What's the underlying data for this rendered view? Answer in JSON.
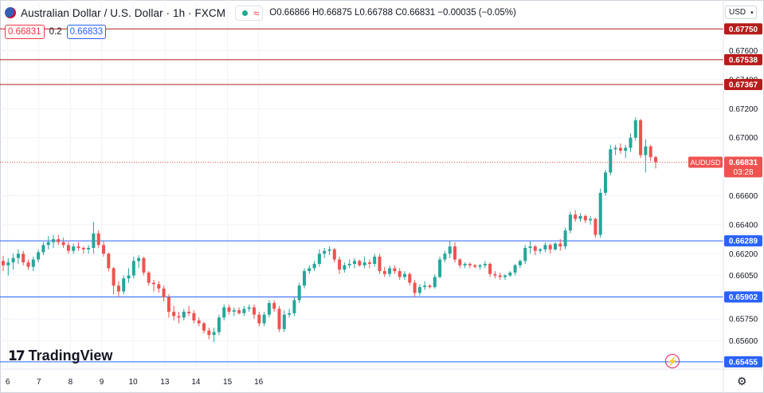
{
  "header": {
    "title": "Australian Dollar / U.S. Dollar · 1h · FXCM",
    "open": "O0.66866",
    "high": "H0.66875",
    "low": "L0.66788",
    "close": "C0.66831",
    "change": "−0.00035 (−0.05%)",
    "live_wave": "≈"
  },
  "quote": {
    "sell": "0.66831",
    "spread": "0.2",
    "buy": "0.66833"
  },
  "currency": "USD",
  "logo_text": "TradingView",
  "colors": {
    "up": "#26a69a",
    "down": "#ef5350",
    "resistance": "#b71c1c",
    "support": "#2962ff",
    "grid": "#f0f3fa"
  },
  "chart_data": {
    "type": "candlestick",
    "symbol": "AUDUSD",
    "timeframe": "1h",
    "ylim": [
      0.6541,
      0.6779
    ],
    "y_ticks": [
      "0.67600",
      "0.67400",
      "0.67200",
      "0.67000",
      "0.66600",
      "0.66400",
      "0.66200",
      "0.66050",
      "0.65750",
      "0.65600"
    ],
    "x_labels": [
      {
        "label": "6",
        "x": 0.9
      },
      {
        "label": "7",
        "x": 7.1
      },
      {
        "label": "8",
        "x": 13.4
      },
      {
        "label": "9",
        "x": 19.6
      },
      {
        "label": "10",
        "x": 25.9
      },
      {
        "label": "13",
        "x": 32.2
      },
      {
        "label": "14",
        "x": 38.4
      },
      {
        "label": "15",
        "x": 44.7
      },
      {
        "label": "16",
        "x": 50.9
      }
    ],
    "horizontal_levels": [
      {
        "value": 0.6775,
        "label": "0.67750",
        "kind": "resistance"
      },
      {
        "value": 0.67538,
        "label": "0.67538",
        "kind": "resistance"
      },
      {
        "value": 0.67367,
        "label": "0.67367",
        "kind": "resistance"
      },
      {
        "value": 0.66289,
        "label": "0.66289",
        "kind": "support"
      },
      {
        "value": 0.65902,
        "label": "0.65902",
        "kind": "support"
      },
      {
        "value": 0.65455,
        "label": "0.65455",
        "kind": "support"
      }
    ],
    "last_price": {
      "value": 0.66831,
      "label": "0.66831",
      "symbol_tag": "AUDUSD",
      "countdown": "03:28"
    },
    "candles": [
      [
        0.6615,
        0.66185,
        0.6608,
        0.6612
      ],
      [
        0.6612,
        0.6617,
        0.6605,
        0.6614
      ],
      [
        0.6614,
        0.662,
        0.6609,
        0.6617
      ],
      [
        0.6617,
        0.6623,
        0.6613,
        0.662
      ],
      [
        0.662,
        0.6622,
        0.6612,
        0.6614
      ],
      [
        0.6614,
        0.6616,
        0.6609,
        0.6611
      ],
      [
        0.6611,
        0.6618,
        0.6608,
        0.6616
      ],
      [
        0.6616,
        0.6623,
        0.6614,
        0.6621
      ],
      [
        0.6621,
        0.6628,
        0.6619,
        0.6626
      ],
      [
        0.6626,
        0.6632,
        0.6623,
        0.6628
      ],
      [
        0.6628,
        0.6633,
        0.6624,
        0.663
      ],
      [
        0.663,
        0.6633,
        0.6626,
        0.6628
      ],
      [
        0.6628,
        0.6631,
        0.6624,
        0.6626
      ],
      [
        0.6626,
        0.6628,
        0.662,
        0.6622
      ],
      [
        0.6622,
        0.6627,
        0.662,
        0.6625
      ],
      [
        0.6625,
        0.6628,
        0.6622,
        0.6624
      ],
      [
        0.6624,
        0.6625,
        0.662,
        0.6623
      ],
      [
        0.6623,
        0.6626,
        0.662,
        0.6624
      ],
      [
        0.6624,
        0.6642,
        0.662,
        0.6634
      ],
      [
        0.6634,
        0.6636,
        0.6624,
        0.6626
      ],
      [
        0.6626,
        0.6629,
        0.6618,
        0.662
      ],
      [
        0.662,
        0.6621,
        0.6608,
        0.661
      ],
      [
        0.661,
        0.6611,
        0.6592,
        0.6598
      ],
      [
        0.6598,
        0.6601,
        0.659,
        0.6594
      ],
      [
        0.6594,
        0.6605,
        0.6592,
        0.6603
      ],
      [
        0.6603,
        0.661,
        0.66,
        0.6605
      ],
      [
        0.6605,
        0.6618,
        0.6603,
        0.6615
      ],
      [
        0.6615,
        0.6619,
        0.661,
        0.6617
      ],
      [
        0.6617,
        0.6618,
        0.6605,
        0.6607
      ],
      [
        0.6607,
        0.6608,
        0.6598,
        0.66
      ],
      [
        0.66,
        0.6602,
        0.6594,
        0.6599
      ],
      [
        0.6599,
        0.6601,
        0.6593,
        0.6596
      ],
      [
        0.6596,
        0.6598,
        0.6587,
        0.659
      ],
      [
        0.659,
        0.6592,
        0.6576,
        0.658
      ],
      [
        0.658,
        0.6584,
        0.6574,
        0.6577
      ],
      [
        0.6577,
        0.658,
        0.6572,
        0.6576
      ],
      [
        0.6576,
        0.6582,
        0.6574,
        0.658
      ],
      [
        0.658,
        0.6584,
        0.6577,
        0.6579
      ],
      [
        0.6579,
        0.6581,
        0.6572,
        0.6574
      ],
      [
        0.6574,
        0.6576,
        0.657,
        0.6572
      ],
      [
        0.6572,
        0.6573,
        0.6565,
        0.6567
      ],
      [
        0.6567,
        0.6569,
        0.6561,
        0.6564
      ],
      [
        0.6564,
        0.6569,
        0.6559,
        0.6566
      ],
      [
        0.6566,
        0.6578,
        0.6564,
        0.6576
      ],
      [
        0.6576,
        0.6585,
        0.6574,
        0.6583
      ],
      [
        0.6583,
        0.6585,
        0.6578,
        0.658
      ],
      [
        0.658,
        0.6583,
        0.6577,
        0.6581
      ],
      [
        0.6581,
        0.6583,
        0.6578,
        0.6579
      ],
      [
        0.6579,
        0.6584,
        0.6577,
        0.6582
      ],
      [
        0.6582,
        0.6585,
        0.658,
        0.6583
      ],
      [
        0.6583,
        0.6585,
        0.6575,
        0.6578
      ],
      [
        0.6578,
        0.658,
        0.657,
        0.6572
      ],
      [
        0.6572,
        0.658,
        0.657,
        0.6578
      ],
      [
        0.6578,
        0.6588,
        0.6576,
        0.6586
      ],
      [
        0.6586,
        0.6588,
        0.658,
        0.6582
      ],
      [
        0.6582,
        0.6584,
        0.6566,
        0.6568
      ],
      [
        0.6568,
        0.6581,
        0.6566,
        0.6578
      ],
      [
        0.6578,
        0.6582,
        0.6576,
        0.6579
      ],
      [
        0.6579,
        0.659,
        0.6577,
        0.6588
      ],
      [
        0.6588,
        0.66,
        0.6586,
        0.6598
      ],
      [
        0.6598,
        0.661,
        0.6596,
        0.6608
      ],
      [
        0.6608,
        0.6612,
        0.6606,
        0.661
      ],
      [
        0.661,
        0.6615,
        0.6608,
        0.6613
      ],
      [
        0.6613,
        0.6623,
        0.6611,
        0.662
      ],
      [
        0.662,
        0.6624,
        0.6617,
        0.6622
      ],
      [
        0.6622,
        0.6625,
        0.6619,
        0.6623
      ],
      [
        0.6623,
        0.6624,
        0.6614,
        0.6616
      ],
      [
        0.6616,
        0.6618,
        0.6606,
        0.6609
      ],
      [
        0.6609,
        0.6614,
        0.6607,
        0.6612
      ],
      [
        0.6612,
        0.6616,
        0.661,
        0.6613
      ],
      [
        0.6613,
        0.6617,
        0.661,
        0.6615
      ],
      [
        0.6615,
        0.6616,
        0.6611,
        0.6612
      ],
      [
        0.6612,
        0.6618,
        0.661,
        0.6614
      ],
      [
        0.6614,
        0.6616,
        0.661,
        0.6613
      ],
      [
        0.6613,
        0.662,
        0.6611,
        0.6618
      ],
      [
        0.6618,
        0.662,
        0.6606,
        0.6608
      ],
      [
        0.6608,
        0.6611,
        0.6604,
        0.6606
      ],
      [
        0.6606,
        0.6612,
        0.6604,
        0.661
      ],
      [
        0.661,
        0.6612,
        0.6606,
        0.6608
      ],
      [
        0.6608,
        0.661,
        0.6602,
        0.6604
      ],
      [
        0.6604,
        0.6608,
        0.6602,
        0.6606
      ],
      [
        0.6606,
        0.6607,
        0.6598,
        0.66
      ],
      [
        0.66,
        0.6602,
        0.659,
        0.6593
      ],
      [
        0.6593,
        0.6599,
        0.6591,
        0.6597
      ],
      [
        0.6597,
        0.6601,
        0.6595,
        0.6598
      ],
      [
        0.6598,
        0.6599,
        0.6596,
        0.6597
      ],
      [
        0.6597,
        0.6606,
        0.6596,
        0.6604
      ],
      [
        0.6604,
        0.6618,
        0.6603,
        0.6616
      ],
      [
        0.6616,
        0.6622,
        0.6614,
        0.662
      ],
      [
        0.662,
        0.6629,
        0.6617,
        0.6625
      ],
      [
        0.6625,
        0.6628,
        0.6614,
        0.6616
      ],
      [
        0.6616,
        0.6617,
        0.661,
        0.6612
      ],
      [
        0.6612,
        0.6614,
        0.661,
        0.6613
      ],
      [
        0.6613,
        0.6614,
        0.661,
        0.6612
      ],
      [
        0.6612,
        0.6613,
        0.661,
        0.6611
      ],
      [
        0.6611,
        0.6613,
        0.6609,
        0.6612
      ],
      [
        0.6612,
        0.6615,
        0.661,
        0.6613
      ],
      [
        0.6613,
        0.6614,
        0.6604,
        0.6606
      ],
      [
        0.6606,
        0.6608,
        0.6603,
        0.6605
      ],
      [
        0.6605,
        0.6607,
        0.6602,
        0.6604
      ],
      [
        0.6604,
        0.6606,
        0.6602,
        0.6605
      ],
      [
        0.6605,
        0.6608,
        0.6604,
        0.6607
      ],
      [
        0.6607,
        0.6613,
        0.6605,
        0.6612
      ],
      [
        0.6612,
        0.6616,
        0.661,
        0.6615
      ],
      [
        0.6615,
        0.6626,
        0.6613,
        0.6624
      ],
      [
        0.6624,
        0.6629,
        0.662,
        0.6625
      ],
      [
        0.6625,
        0.6626,
        0.6619,
        0.6622
      ],
      [
        0.6622,
        0.6624,
        0.662,
        0.6623
      ],
      [
        0.6623,
        0.6628,
        0.6621,
        0.6626
      ],
      [
        0.6626,
        0.6627,
        0.662,
        0.6623
      ],
      [
        0.6623,
        0.6628,
        0.6622,
        0.6627
      ],
      [
        0.6627,
        0.663,
        0.6622,
        0.6625
      ],
      [
        0.6625,
        0.6638,
        0.6623,
        0.6636
      ],
      [
        0.6636,
        0.6649,
        0.6634,
        0.6647
      ],
      [
        0.6647,
        0.665,
        0.6642,
        0.6644
      ],
      [
        0.6644,
        0.6648,
        0.6642,
        0.6646
      ],
      [
        0.6646,
        0.6647,
        0.6641,
        0.6643
      ],
      [
        0.6643,
        0.6646,
        0.664,
        0.6644
      ],
      [
        0.6644,
        0.6645,
        0.6631,
        0.6633
      ],
      [
        0.6633,
        0.6665,
        0.6631,
        0.6662
      ],
      [
        0.6662,
        0.6678,
        0.666,
        0.6676
      ],
      [
        0.6676,
        0.6695,
        0.6674,
        0.6692
      ],
      [
        0.6692,
        0.6695,
        0.6688,
        0.6693
      ],
      [
        0.6693,
        0.6696,
        0.6689,
        0.6691
      ],
      [
        0.6691,
        0.6695,
        0.6686,
        0.6693
      ],
      [
        0.6693,
        0.6703,
        0.669,
        0.67
      ],
      [
        0.67,
        0.6714,
        0.6698,
        0.6712
      ],
      [
        0.6712,
        0.6713,
        0.6686,
        0.6688
      ],
      [
        0.6688,
        0.6699,
        0.6676,
        0.6694
      ],
      [
        0.6694,
        0.6695,
        0.6684,
        0.66866
      ],
      [
        0.66866,
        0.66875,
        0.66788,
        0.66831
      ]
    ]
  }
}
